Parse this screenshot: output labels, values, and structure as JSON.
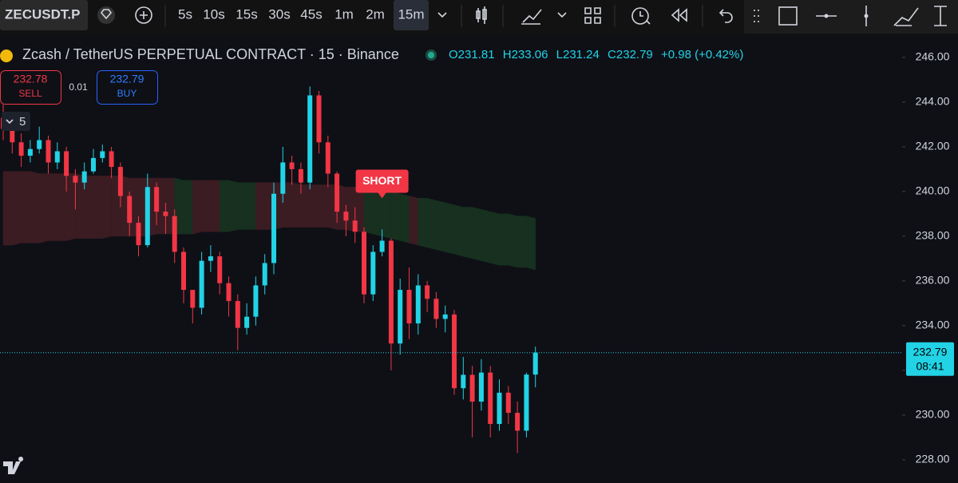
{
  "toolbar": {
    "symbol": "ZECUSDT.P",
    "intervals": [
      "5s",
      "10s",
      "15s",
      "30s",
      "45s",
      "1m",
      "2m",
      "15m"
    ],
    "active_interval": "15m"
  },
  "legend": {
    "title": "Zcash / TetherUS PERPETUAL CONTRACT · 15 · Binance",
    "ohlc_labels": [
      "O",
      "H",
      "L",
      "C"
    ],
    "change": "+0.98 (+0.42%)"
  },
  "trade_panel": {
    "sell_price": 232.78,
    "sell_label": "SELL",
    "spread": 0.01,
    "buy_price": 232.79,
    "buy_label": "BUY",
    "quantity": 5
  },
  "chart_data": {
    "type": "candlestick",
    "open": [
      243.3,
      242.8,
      242.2,
      241.6,
      241.9,
      242.3,
      241.3,
      241.8,
      240.7,
      240.4,
      240.9,
      241.5,
      241.8,
      241.1,
      239.8,
      238.6,
      237.6,
      240.2,
      239.1,
      238.9,
      237.3,
      235.6,
      234.8,
      236.9,
      237.1,
      235.9,
      235.1,
      233.9,
      234.4,
      235.8,
      236.8,
      239.9,
      241.3,
      241.0,
      240.4,
      244.3,
      242.2,
      240.8,
      239.1,
      238.7,
      238.2,
      235.4,
      237.3,
      237.8,
      233.2,
      235.6,
      234.1,
      235.8,
      235.2,
      234.3,
      234.5,
      231.2,
      231.8,
      230.6,
      231.9,
      229.6,
      231.0,
      230.1,
      229.3,
      231.81
    ],
    "high": [
      243.9,
      243.1,
      242.6,
      242.3,
      242.9,
      242.5,
      242.2,
      242.0,
      241.0,
      241.3,
      241.9,
      242.1,
      242.0,
      241.3,
      240.0,
      238.9,
      240.8,
      240.4,
      239.5,
      239.2,
      237.5,
      235.5,
      237.3,
      237.6,
      237.3,
      236.2,
      235.4,
      235.0,
      236.2,
      237.2,
      240.4,
      242.0,
      241.6,
      241.3,
      244.7,
      244.5,
      242.5,
      240.9,
      239.4,
      239.3,
      238.4,
      237.6,
      238.3,
      237.9,
      236.1,
      236.6,
      236.3,
      236.0,
      235.5,
      234.9,
      234.7,
      232.6,
      232.2,
      232.5,
      232.2,
      231.6,
      231.3,
      230.6,
      231.9,
      233.06
    ],
    "low": [
      242.3,
      241.7,
      241.1,
      241.3,
      241.7,
      240.8,
      241.0,
      240.0,
      239.2,
      240.1,
      240.8,
      241.3,
      240.6,
      239.3,
      238.0,
      237.1,
      237.5,
      238.5,
      238.1,
      236.8,
      235.0,
      234.1,
      234.5,
      236.4,
      235.4,
      234.4,
      232.9,
      233.6,
      234.0,
      235.4,
      236.3,
      239.5,
      240.3,
      239.9,
      240.1,
      241.7,
      240.2,
      238.6,
      238.0,
      237.7,
      235.0,
      235.1,
      237.1,
      232.0,
      232.7,
      233.4,
      233.6,
      234.6,
      233.9,
      233.7,
      230.9,
      230.7,
      229.0,
      230.2,
      229.0,
      229.3,
      229.6,
      228.3,
      229.0,
      231.24
    ],
    "close": [
      242.8,
      242.2,
      241.6,
      241.9,
      242.3,
      241.3,
      241.8,
      240.7,
      240.4,
      240.9,
      241.5,
      241.8,
      241.1,
      239.8,
      238.6,
      237.6,
      240.2,
      239.1,
      238.9,
      237.3,
      235.6,
      234.8,
      236.9,
      237.1,
      235.9,
      235.1,
      233.9,
      234.4,
      235.8,
      236.8,
      239.9,
      241.3,
      241.0,
      240.4,
      244.3,
      242.2,
      240.8,
      239.1,
      238.7,
      238.2,
      235.4,
      237.3,
      237.8,
      233.2,
      235.6,
      234.1,
      235.8,
      235.2,
      234.3,
      234.5,
      231.2,
      231.8,
      230.6,
      231.9,
      229.6,
      231.0,
      230.1,
      229.3,
      231.81,
      232.79
    ],
    "up_color": "#22d3e6",
    "down_color": "#f23645",
    "band": {
      "upper": [
        240.9,
        240.9,
        240.9,
        240.9,
        240.8,
        240.8,
        240.8,
        240.8,
        240.8,
        240.7,
        240.7,
        240.7,
        240.7,
        240.7,
        240.6,
        240.6,
        240.6,
        240.6,
        240.6,
        240.6,
        240.5,
        240.5,
        240.5,
        240.5,
        240.5,
        240.5,
        240.4,
        240.4,
        240.4,
        240.4,
        240.4,
        240.4,
        240.4,
        240.3,
        240.3,
        240.3,
        240.3,
        240.3,
        240.2,
        240.2,
        240.1,
        240.1,
        240.0,
        240.0,
        239.9,
        239.8,
        239.7,
        239.7,
        239.6,
        239.5,
        239.4,
        239.3,
        239.3,
        239.2,
        239.1,
        239.0,
        239.0,
        238.9,
        238.9,
        238.8
      ],
      "lower": [
        237.6,
        237.6,
        237.7,
        237.7,
        237.7,
        237.8,
        237.8,
        237.8,
        237.9,
        237.9,
        237.9,
        237.9,
        238.0,
        238.0,
        238.0,
        238.0,
        238.0,
        238.1,
        238.1,
        238.1,
        238.1,
        238.1,
        238.2,
        238.2,
        238.2,
        238.2,
        238.3,
        238.3,
        238.3,
        238.3,
        238.3,
        238.4,
        238.4,
        238.4,
        238.4,
        238.4,
        238.4,
        238.3,
        238.3,
        238.2,
        238.2,
        238.1,
        238.0,
        237.9,
        237.8,
        237.7,
        237.6,
        237.5,
        237.4,
        237.3,
        237.2,
        237.1,
        237.0,
        236.9,
        236.8,
        236.7,
        236.7,
        236.6,
        236.6,
        236.5
      ],
      "trend": [
        "bear",
        "bear",
        "bear",
        "bear",
        "bear",
        "bear",
        "bear",
        "bear",
        "bear",
        "bear",
        "bear",
        "bear",
        "bear",
        "bear",
        "bear",
        "bear",
        "bear",
        "bear",
        "bear",
        "bull",
        "bull",
        "bear",
        "bear",
        "bear",
        "bull",
        "bull",
        "bull",
        "bull",
        "bear",
        "bear",
        "bear",
        "bear",
        "bear",
        "bear",
        "bear",
        "bear",
        "bear",
        "bear",
        "bear",
        "bear",
        "bull",
        "bull",
        "bull",
        "bull",
        "bull",
        "bear",
        "bull",
        "bull",
        "bull",
        "bull",
        "bull",
        "bull",
        "bull",
        "bull",
        "bull",
        "bull",
        "bull",
        "bull",
        "bull",
        "bull"
      ],
      "colors": {
        "bear": "#3b1c22",
        "bull": "#17301f"
      }
    },
    "annotations": [
      {
        "text": "SHORT",
        "candle": 42,
        "color": "#f23645"
      }
    ],
    "last_price": {
      "value": 232.79,
      "countdown": "08:41",
      "color": "#22d3e6"
    },
    "ylim": [
      226.96,
      246.96
    ],
    "yticks": [
      {
        "value": 228,
        "label": "228.00"
      },
      {
        "value": 230,
        "label": "230.00"
      },
      {
        "value": 232,
        "label": "232.00"
      },
      {
        "value": 234,
        "label": "234.00"
      },
      {
        "value": 236,
        "label": "236.00"
      },
      {
        "value": 238,
        "label": "238.00"
      },
      {
        "value": 240,
        "label": "240.00"
      },
      {
        "value": 242,
        "label": "242.00"
      },
      {
        "value": 244,
        "label": "244.00"
      },
      {
        "value": 246,
        "label": "246.00"
      }
    ],
    "grid": false
  }
}
